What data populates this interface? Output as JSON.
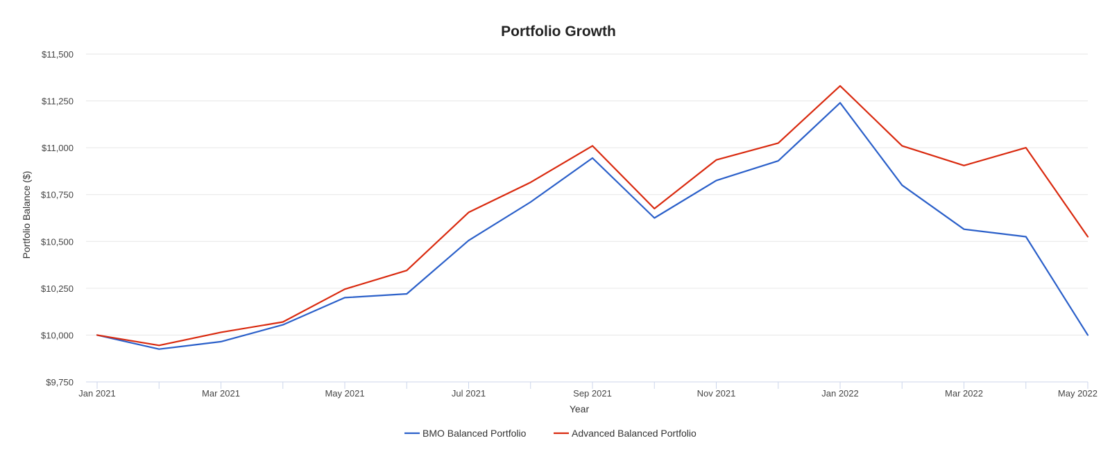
{
  "chart_data": {
    "type": "line",
    "title": "Portfolio Growth",
    "xlabel": "Year",
    "ylabel": "Portfolio Balance ($)",
    "ylim": [
      9750,
      11500
    ],
    "yticks": [
      9750,
      10000,
      10250,
      10500,
      10750,
      11000,
      11250,
      11500
    ],
    "ytick_labels": [
      "$9,750",
      "$10,000",
      "$10,250",
      "$10,500",
      "$10,750",
      "$11,000",
      "$11,250",
      "$11,500"
    ],
    "x": [
      "Jan 2021",
      "Feb 2021",
      "Mar 2021",
      "Apr 2021",
      "May 2021",
      "Jun 2021",
      "Jul 2021",
      "Aug 2021",
      "Sep 2021",
      "Oct 2021",
      "Nov 2021",
      "Dec 2021",
      "Jan 2022",
      "Feb 2022",
      "Mar 2022",
      "Apr 2022",
      "May 2022"
    ],
    "xtick_labels": [
      "Jan 2021",
      "",
      "Mar 2021",
      "",
      "May 2021",
      "",
      "Jul 2021",
      "",
      "Sep 2021",
      "",
      "Nov 2021",
      "",
      "Jan 2022",
      "",
      "Mar 2022",
      "",
      "May 2022"
    ],
    "grid": true,
    "legend_position": "bottom-center",
    "series": [
      {
        "name": "BMO Balanced Portfolio",
        "color": "#2a5fc9",
        "values": [
          10000,
          9925,
          9965,
          10055,
          10200,
          10220,
          10505,
          10710,
          10945,
          10625,
          10825,
          10930,
          11240,
          10800,
          10565,
          10525,
          10000
        ]
      },
      {
        "name": "Advanced Balanced Portfolio",
        "color": "#d9290e",
        "values": [
          10000,
          9945,
          10015,
          10070,
          10245,
          10345,
          10655,
          10815,
          11010,
          10675,
          10935,
          11025,
          11330,
          11010,
          10905,
          11000,
          10525
        ]
      }
    ]
  }
}
